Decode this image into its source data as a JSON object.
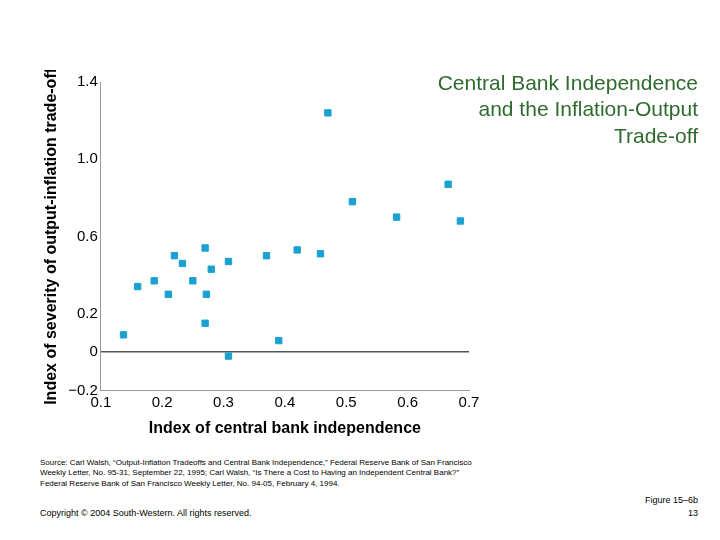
{
  "chart_data": {
    "type": "scatter",
    "title": "Central Bank Independence and the Inflation-Output Trade-off",
    "x_label": "Index of central bank independence",
    "y_label": "Index of severity of output-inflation trade-off",
    "x": [
      0.137,
      0.16,
      0.187,
      0.21,
      0.22,
      0.233,
      0.25,
      0.27,
      0.272,
      0.27,
      0.28,
      0.308,
      0.308,
      0.37,
      0.39,
      0.42,
      0.458,
      0.47,
      0.51,
      0.582,
      0.666,
      0.686
    ],
    "values": [
      0.09,
      0.34,
      0.37,
      0.3,
      0.5,
      0.46,
      0.37,
      0.54,
      0.3,
      0.15,
      0.43,
      0.47,
      -0.02,
      0.5,
      0.06,
      0.53,
      0.51,
      1.24,
      0.78,
      0.7,
      0.87,
      0.68
    ],
    "color": "#1ba1d1",
    "marker": "square",
    "xlim": [
      0.1,
      0.7
    ],
    "xticks": [
      0.1,
      0.2,
      0.3,
      0.4,
      0.5,
      0.6,
      0.7
    ],
    "ylim": [
      -0.2,
      1.4
    ],
    "yticks": [
      {
        "value": -0.2,
        "label": "−0.2"
      },
      0,
      0.2,
      0.6,
      {
        "value": 1,
        "label": "1.0"
      },
      1.4
    ],
    "grid": false,
    "annotations": [
      "Source: Carl Walsh, “Output-Inflation Tradeoffs and Central Bank Independence,” Federal Reserve Bank of San Francisco Weekly Letter, No. 95-31, September 22, 1995; Carl Walsh, “Is There a Cost to Having an Independent Central Bank?” Federal Reserve Bank of San Francisco Weekly Letter, No. 94-05, February 4, 1994.",
      "Copyright © 2004 South-Western. All rights reserved.",
      "Figure 15–6b",
      "13"
    ]
  }
}
